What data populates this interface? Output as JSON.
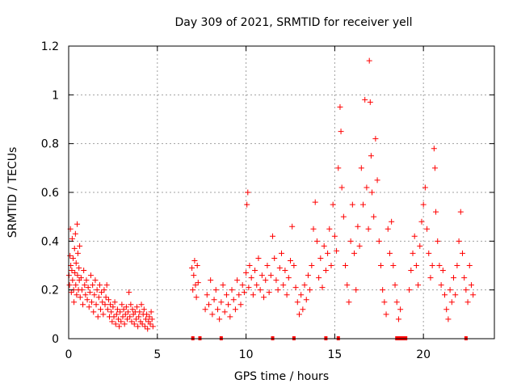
{
  "chart_data": {
    "type": "scatter",
    "title": "Day 309 of 2021, SRMTID for receiver yell",
    "xlabel": "GPS time / hours",
    "ylabel": "SRMTID / TECUs",
    "xlim": [
      0,
      24
    ],
    "ylim": [
      0,
      1.2
    ],
    "x_ticks": [
      0,
      5,
      10,
      15,
      20
    ],
    "x_tick_labels": [
      "0",
      "5",
      "10",
      "15",
      "20"
    ],
    "y_ticks": [
      0,
      0.2,
      0.4,
      0.6,
      0.8,
      1.0,
      1.2
    ],
    "y_tick_labels": [
      "0",
      "0.2",
      "0.4",
      "0.6",
      "0.8",
      "1",
      "1.2"
    ],
    "grid": true,
    "marker": "+",
    "color": "#ff0000",
    "series": [
      {
        "name": "SRMTID",
        "points": [
          [
            0.02,
            0.26
          ],
          [
            0.05,
            0.22
          ],
          [
            0.08,
            0.34
          ],
          [
            0.1,
            0.45
          ],
          [
            0.12,
            0.3
          ],
          [
            0.15,
            0.19
          ],
          [
            0.18,
            0.28
          ],
          [
            0.2,
            0.41
          ],
          [
            0.22,
            0.24
          ],
          [
            0.25,
            0.33
          ],
          [
            0.28,
            0.2
          ],
          [
            0.3,
            0.15
          ],
          [
            0.33,
            0.37
          ],
          [
            0.35,
            0.27
          ],
          [
            0.38,
            0.43
          ],
          [
            0.4,
            0.22
          ],
          [
            0.42,
            0.31
          ],
          [
            0.45,
            0.18
          ],
          [
            0.48,
            0.47
          ],
          [
            0.5,
            0.26
          ],
          [
            0.52,
            0.35
          ],
          [
            0.55,
            0.2
          ],
          [
            0.58,
            0.29
          ],
          [
            0.6,
            0.24
          ],
          [
            0.62,
            0.38
          ],
          [
            0.65,
            0.17
          ],
          [
            0.7,
            0.25
          ],
          [
            0.75,
            0.2
          ],
          [
            0.8,
            0.14
          ],
          [
            0.85,
            0.28
          ],
          [
            0.9,
            0.22
          ],
          [
            0.95,
            0.18
          ],
          [
            1.0,
            0.24
          ],
          [
            1.05,
            0.16
          ],
          [
            1.1,
            0.21
          ],
          [
            1.15,
            0.13
          ],
          [
            1.2,
            0.19
          ],
          [
            1.25,
            0.26
          ],
          [
            1.3,
            0.15
          ],
          [
            1.35,
            0.22
          ],
          [
            1.4,
            0.11
          ],
          [
            1.45,
            0.18
          ],
          [
            1.5,
            0.24
          ],
          [
            1.55,
            0.14
          ],
          [
            1.6,
            0.2
          ],
          [
            1.65,
            0.09
          ],
          [
            1.7,
            0.17
          ],
          [
            1.75,
            0.22
          ],
          [
            1.8,
            0.12
          ],
          [
            1.85,
            0.19
          ],
          [
            1.9,
            0.15
          ],
          [
            1.95,
            0.1
          ],
          [
            2.0,
            0.2
          ],
          [
            2.05,
            0.14
          ],
          [
            2.1,
            0.17
          ],
          [
            2.15,
            0.22
          ],
          [
            2.2,
            0.12
          ],
          [
            2.25,
            0.16
          ],
          [
            2.3,
            0.09
          ],
          [
            2.35,
            0.14
          ],
          [
            2.4,
            0.11
          ],
          [
            2.45,
            0.07
          ],
          [
            2.5,
            0.13
          ],
          [
            2.55,
            0.09
          ],
          [
            2.6,
            0.15
          ],
          [
            2.65,
            0.06
          ],
          [
            2.7,
            0.1
          ],
          [
            2.75,
            0.12
          ],
          [
            2.8,
            0.08
          ],
          [
            2.85,
            0.05
          ],
          [
            2.9,
            0.11
          ],
          [
            2.95,
            0.07
          ],
          [
            3.0,
            0.14
          ],
          [
            3.05,
            0.09
          ],
          [
            3.1,
            0.12
          ],
          [
            3.15,
            0.06
          ],
          [
            3.2,
            0.1
          ],
          [
            3.25,
            0.13
          ],
          [
            3.3,
            0.08
          ],
          [
            3.35,
            0.11
          ],
          [
            3.4,
            0.19
          ],
          [
            3.45,
            0.09
          ],
          [
            3.5,
            0.14
          ],
          [
            3.55,
            0.07
          ],
          [
            3.6,
            0.12
          ],
          [
            3.65,
            0.1
          ],
          [
            3.7,
            0.06
          ],
          [
            3.75,
            0.11
          ],
          [
            3.8,
            0.08
          ],
          [
            3.85,
            0.13
          ],
          [
            3.9,
            0.05
          ],
          [
            3.95,
            0.09
          ],
          [
            4.0,
            0.11
          ],
          [
            4.05,
            0.07
          ],
          [
            4.1,
            0.14
          ],
          [
            4.15,
            0.06
          ],
          [
            4.2,
            0.1
          ],
          [
            4.25,
            0.12
          ],
          [
            4.3,
            0.05
          ],
          [
            4.35,
            0.08
          ],
          [
            4.4,
            0.1
          ],
          [
            4.45,
            0.04
          ],
          [
            4.5,
            0.07
          ],
          [
            4.55,
            0.09
          ],
          [
            4.6,
            0.06
          ],
          [
            4.65,
            0.11
          ],
          [
            4.7,
            0.08
          ],
          [
            4.75,
            0.05
          ],
          [
            6.95,
            0.29
          ],
          [
            7.0,
            0.2
          ],
          [
            7.05,
            0.26
          ],
          [
            7.1,
            0.32
          ],
          [
            7.15,
            0.22
          ],
          [
            7.2,
            0.17
          ],
          [
            7.25,
            0.3
          ],
          [
            7.3,
            0.23
          ],
          [
            7.7,
            0.12
          ],
          [
            7.8,
            0.18
          ],
          [
            7.9,
            0.14
          ],
          [
            8.0,
            0.24
          ],
          [
            8.1,
            0.1
          ],
          [
            8.2,
            0.16
          ],
          [
            8.3,
            0.2
          ],
          [
            8.4,
            0.12
          ],
          [
            8.5,
            0.08
          ],
          [
            8.6,
            0.15
          ],
          [
            8.7,
            0.22
          ],
          [
            8.8,
            0.11
          ],
          [
            8.9,
            0.18
          ],
          [
            9.0,
            0.14
          ],
          [
            9.1,
            0.09
          ],
          [
            9.2,
            0.2
          ],
          [
            9.3,
            0.16
          ],
          [
            9.4,
            0.12
          ],
          [
            9.5,
            0.24
          ],
          [
            9.6,
            0.18
          ],
          [
            9.7,
            0.14
          ],
          [
            9.8,
            0.22
          ],
          [
            9.9,
            0.19
          ],
          [
            10.0,
            0.27
          ],
          [
            10.05,
            0.55
          ],
          [
            10.1,
            0.6
          ],
          [
            10.15,
            0.21
          ],
          [
            10.2,
            0.3
          ],
          [
            10.3,
            0.25
          ],
          [
            10.4,
            0.18
          ],
          [
            10.5,
            0.28
          ],
          [
            10.6,
            0.22
          ],
          [
            10.7,
            0.33
          ],
          [
            10.8,
            0.2
          ],
          [
            10.9,
            0.26
          ],
          [
            11.0,
            0.17
          ],
          [
            11.1,
            0.24
          ],
          [
            11.2,
            0.3
          ],
          [
            11.3,
            0.19
          ],
          [
            11.4,
            0.26
          ],
          [
            11.5,
            0.42
          ],
          [
            11.6,
            0.33
          ],
          [
            11.7,
            0.24
          ],
          [
            11.8,
            0.2
          ],
          [
            11.9,
            0.29
          ],
          [
            12.0,
            0.35
          ],
          [
            12.1,
            0.22
          ],
          [
            12.2,
            0.28
          ],
          [
            12.3,
            0.18
          ],
          [
            12.4,
            0.25
          ],
          [
            12.5,
            0.32
          ],
          [
            12.6,
            0.46
          ],
          [
            12.7,
            0.3
          ],
          [
            12.8,
            0.21
          ],
          [
            12.9,
            0.15
          ],
          [
            13.0,
            0.1
          ],
          [
            13.1,
            0.18
          ],
          [
            13.2,
            0.12
          ],
          [
            13.3,
            0.22
          ],
          [
            13.4,
            0.16
          ],
          [
            13.5,
            0.26
          ],
          [
            13.6,
            0.2
          ],
          [
            13.7,
            0.3
          ],
          [
            13.8,
            0.45
          ],
          [
            13.9,
            0.56
          ],
          [
            14.0,
            0.4
          ],
          [
            14.1,
            0.25
          ],
          [
            14.2,
            0.33
          ],
          [
            14.3,
            0.21
          ],
          [
            14.4,
            0.38
          ],
          [
            14.5,
            0.28
          ],
          [
            14.6,
            0.35
          ],
          [
            14.7,
            0.45
          ],
          [
            14.8,
            0.3
          ],
          [
            14.9,
            0.55
          ],
          [
            15.0,
            0.42
          ],
          [
            15.1,
            0.36
          ],
          [
            15.2,
            0.7
          ],
          [
            15.3,
            0.95
          ],
          [
            15.35,
            0.85
          ],
          [
            15.4,
            0.62
          ],
          [
            15.5,
            0.5
          ],
          [
            15.6,
            0.3
          ],
          [
            15.7,
            0.22
          ],
          [
            15.8,
            0.15
          ],
          [
            15.9,
            0.4
          ],
          [
            16.0,
            0.55
          ],
          [
            16.1,
            0.35
          ],
          [
            16.2,
            0.2
          ],
          [
            16.3,
            0.46
          ],
          [
            16.4,
            0.38
          ],
          [
            16.5,
            0.7
          ],
          [
            16.6,
            0.55
          ],
          [
            16.7,
            0.98
          ],
          [
            16.8,
            0.62
          ],
          [
            16.9,
            0.45
          ],
          [
            16.95,
            1.14
          ],
          [
            17.0,
            0.97
          ],
          [
            17.05,
            0.75
          ],
          [
            17.1,
            0.6
          ],
          [
            17.2,
            0.5
          ],
          [
            17.3,
            0.82
          ],
          [
            17.4,
            0.65
          ],
          [
            17.5,
            0.4
          ],
          [
            17.6,
            0.3
          ],
          [
            17.7,
            0.2
          ],
          [
            17.8,
            0.15
          ],
          [
            17.9,
            0.1
          ],
          [
            18.0,
            0.45
          ],
          [
            18.1,
            0.35
          ],
          [
            18.2,
            0.48
          ],
          [
            18.3,
            0.3
          ],
          [
            18.4,
            0.22
          ],
          [
            18.5,
            0.15
          ],
          [
            18.6,
            0.08
          ],
          [
            18.7,
            0.12
          ],
          [
            19.2,
            0.2
          ],
          [
            19.3,
            0.28
          ],
          [
            19.4,
            0.35
          ],
          [
            19.5,
            0.42
          ],
          [
            19.6,
            0.3
          ],
          [
            19.7,
            0.22
          ],
          [
            19.8,
            0.38
          ],
          [
            19.9,
            0.48
          ],
          [
            20.0,
            0.55
          ],
          [
            20.1,
            0.62
          ],
          [
            20.2,
            0.45
          ],
          [
            20.3,
            0.35
          ],
          [
            20.4,
            0.25
          ],
          [
            20.5,
            0.3
          ],
          [
            20.6,
            0.78
          ],
          [
            20.65,
            0.7
          ],
          [
            20.7,
            0.52
          ],
          [
            20.8,
            0.4
          ],
          [
            20.9,
            0.3
          ],
          [
            21.0,
            0.22
          ],
          [
            21.1,
            0.28
          ],
          [
            21.2,
            0.18
          ],
          [
            21.3,
            0.12
          ],
          [
            21.4,
            0.08
          ],
          [
            21.5,
            0.2
          ],
          [
            21.6,
            0.15
          ],
          [
            21.7,
            0.25
          ],
          [
            21.8,
            0.18
          ],
          [
            21.9,
            0.3
          ],
          [
            22.0,
            0.4
          ],
          [
            22.1,
            0.52
          ],
          [
            22.2,
            0.35
          ],
          [
            22.3,
            0.25
          ],
          [
            22.4,
            0.2
          ],
          [
            22.5,
            0.15
          ],
          [
            22.6,
            0.3
          ],
          [
            22.7,
            0.22
          ],
          [
            22.8,
            0.18
          ]
        ],
        "baseline_zero_points": [
          [
            7.0,
            0
          ],
          [
            7.4,
            0
          ],
          [
            8.6,
            0
          ],
          [
            11.5,
            0
          ],
          [
            12.7,
            0
          ],
          [
            14.5,
            0
          ],
          [
            15.2,
            0
          ],
          [
            18.5,
            0
          ],
          [
            18.6,
            0
          ],
          [
            18.7,
            0
          ],
          [
            18.8,
            0
          ],
          [
            18.9,
            0
          ],
          [
            19.0,
            0
          ],
          [
            22.4,
            0
          ]
        ]
      }
    ]
  }
}
